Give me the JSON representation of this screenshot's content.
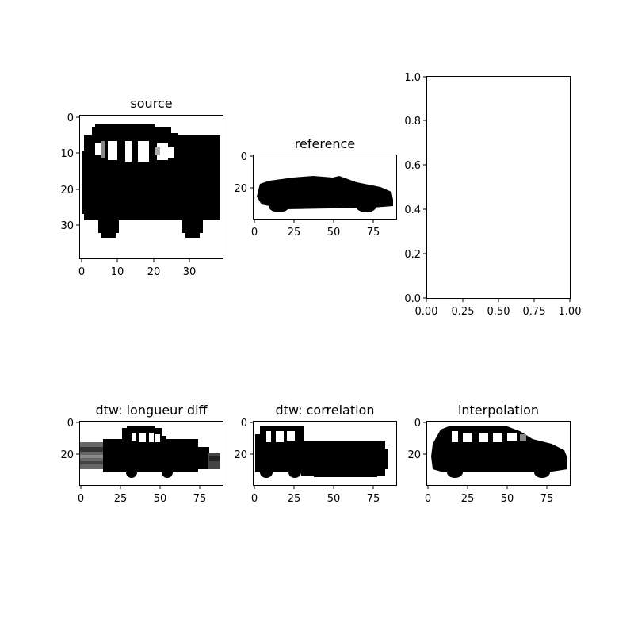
{
  "chart_data": [
    {
      "type": "image",
      "title": "source",
      "x_ticks": [
        "0",
        "10",
        "20",
        "30"
      ],
      "y_ticks": [
        "0",
        "10",
        "20",
        "30"
      ],
      "xlim": [
        -0.5,
        39.5
      ],
      "ylim": [
        39.5,
        -0.5
      ],
      "silhouette": "boxy hatchback car facing right, pixelated 40x40"
    },
    {
      "type": "image",
      "title": "reference",
      "x_ticks": [
        "0",
        "25",
        "50",
        "75"
      ],
      "y_ticks": [
        "0",
        "20"
      ],
      "xlim": [
        -0.5,
        89.5
      ],
      "ylim": [
        39.5,
        -0.5
      ],
      "silhouette": "low sports car facing right"
    },
    {
      "type": "empty",
      "title": "",
      "x_ticks": [
        "0.00",
        "0.25",
        "0.50",
        "0.75",
        "1.00"
      ],
      "y_ticks": [
        "0.0",
        "0.2",
        "0.4",
        "0.6",
        "0.8",
        "1.0"
      ],
      "xlim": [
        0,
        1
      ],
      "ylim": [
        0,
        1
      ]
    },
    {
      "type": "image",
      "title": "dtw: longueur diff",
      "x_ticks": [
        "0",
        "25",
        "50",
        "75"
      ],
      "y_ticks": [
        "0",
        "20"
      ],
      "xlim": [
        -0.5,
        89.5
      ],
      "ylim": [
        39.5,
        -0.5
      ],
      "silhouette": "stretched car with smeared front and rear"
    },
    {
      "type": "image",
      "title": "dtw: correlation",
      "x_ticks": [
        "0",
        "25",
        "50",
        "75"
      ],
      "y_ticks": [
        "0",
        "20"
      ],
      "xlim": [
        -0.5,
        89.5
      ],
      "ylim": [
        39.5,
        -0.5
      ],
      "silhouette": "car with cabin at front and long flat rear body"
    },
    {
      "type": "image",
      "title": "interpolation",
      "x_ticks": [
        "0",
        "25",
        "50",
        "75"
      ],
      "y_ticks": [
        "0",
        "20"
      ],
      "xlim": [
        -0.5,
        89.5
      ],
      "ylim": [
        39.5,
        -0.5
      ],
      "silhouette": "widened hatchback car facing right"
    }
  ]
}
